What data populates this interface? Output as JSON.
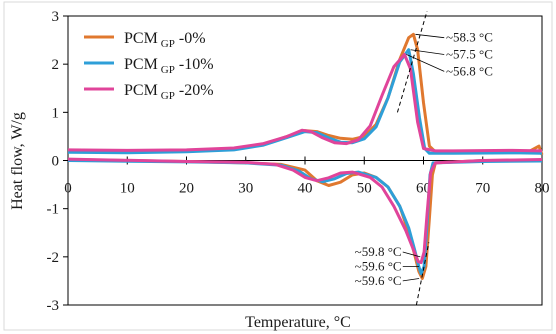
{
  "chart_data": {
    "type": "line",
    "title": "",
    "xlabel": "Temperature, °C",
    "ylabel": "Heat flow, W/g",
    "xlim": [
      0,
      80
    ],
    "ylim": [
      -3,
      3
    ],
    "x_ticks": [
      "0",
      "10",
      "20",
      "30",
      "40",
      "50",
      "60",
      "70",
      "80"
    ],
    "y_ticks": [
      "-3",
      "-2",
      "-1",
      "0",
      "1",
      "2",
      "3"
    ],
    "grid": false,
    "legend_position": "top-left",
    "series": [
      {
        "name": "PCM",
        "subscript": "GP",
        "suffix": " -0%",
        "color": "#E0782F",
        "heating": [
          [
            0,
            0.2
          ],
          [
            10,
            0.2
          ],
          [
            20,
            0.2
          ],
          [
            28,
            0.24
          ],
          [
            33,
            0.33
          ],
          [
            37,
            0.5
          ],
          [
            40,
            0.62
          ],
          [
            42,
            0.6
          ],
          [
            44,
            0.52
          ],
          [
            46,
            0.46
          ],
          [
            48,
            0.44
          ],
          [
            50,
            0.5
          ],
          [
            52,
            0.75
          ],
          [
            54,
            1.3
          ],
          [
            56,
            2.1
          ],
          [
            57.5,
            2.55
          ],
          [
            58.3,
            2.62
          ],
          [
            59,
            2.3
          ],
          [
            60,
            1.2
          ],
          [
            61,
            0.3
          ],
          [
            62,
            0.18
          ],
          [
            65,
            0.16
          ],
          [
            75,
            0.17
          ],
          [
            78,
            0.2
          ],
          [
            79.5,
            0.3
          ],
          [
            80,
            0.12
          ]
        ],
        "cooling": [
          [
            0,
            0.02
          ],
          [
            20,
            -0.02
          ],
          [
            30,
            -0.05
          ],
          [
            36,
            -0.08
          ],
          [
            40,
            -0.2
          ],
          [
            42,
            -0.42
          ],
          [
            44,
            -0.52
          ],
          [
            46,
            -0.45
          ],
          [
            48,
            -0.3
          ],
          [
            50,
            -0.26
          ],
          [
            52,
            -0.35
          ],
          [
            54,
            -0.55
          ],
          [
            56,
            -0.95
          ],
          [
            57.5,
            -1.5
          ],
          [
            58.5,
            -1.95
          ],
          [
            59.2,
            -2.3
          ],
          [
            59.8,
            -2.45
          ],
          [
            60.4,
            -2.2
          ],
          [
            61,
            -1.2
          ],
          [
            61.5,
            -0.3
          ],
          [
            62,
            -0.05
          ],
          [
            70,
            0.0
          ],
          [
            80,
            0.01
          ]
        ]
      },
      {
        "name": "PCM",
        "subscript": "GP",
        "suffix": " -10%",
        "color": "#2E9FD8",
        "heating": [
          [
            0,
            0.17
          ],
          [
            10,
            0.16
          ],
          [
            20,
            0.18
          ],
          [
            28,
            0.22
          ],
          [
            33,
            0.32
          ],
          [
            37,
            0.48
          ],
          [
            40,
            0.6
          ],
          [
            42,
            0.58
          ],
          [
            44,
            0.47
          ],
          [
            46,
            0.38
          ],
          [
            48,
            0.37
          ],
          [
            50,
            0.45
          ],
          [
            52,
            0.7
          ],
          [
            54,
            1.3
          ],
          [
            56,
            2.05
          ],
          [
            57.5,
            2.3
          ],
          [
            58.3,
            1.8
          ],
          [
            59.3,
            0.9
          ],
          [
            60.2,
            0.25
          ],
          [
            61,
            0.15
          ],
          [
            65,
            0.15
          ],
          [
            75,
            0.16
          ],
          [
            80,
            0.15
          ]
        ],
        "cooling": [
          [
            0,
            0.0
          ],
          [
            20,
            -0.03
          ],
          [
            30,
            -0.05
          ],
          [
            36,
            -0.1
          ],
          [
            39,
            -0.22
          ],
          [
            41,
            -0.38
          ],
          [
            43,
            -0.44
          ],
          [
            45,
            -0.38
          ],
          [
            47,
            -0.27
          ],
          [
            49,
            -0.24
          ],
          [
            52,
            -0.35
          ],
          [
            54,
            -0.55
          ],
          [
            56,
            -0.95
          ],
          [
            57.5,
            -1.4
          ],
          [
            58.5,
            -1.85
          ],
          [
            59.2,
            -2.2
          ],
          [
            59.6,
            -2.35
          ],
          [
            60.1,
            -2.2
          ],
          [
            60.6,
            -1.3
          ],
          [
            61.1,
            -0.3
          ],
          [
            61.6,
            -0.05
          ],
          [
            70,
            -0.02
          ],
          [
            80,
            -0.01
          ]
        ]
      },
      {
        "name": "PCM",
        "subscript": "GP",
        "suffix": " -20%",
        "color": "#E0449A",
        "heating": [
          [
            0,
            0.22
          ],
          [
            10,
            0.21
          ],
          [
            20,
            0.22
          ],
          [
            28,
            0.26
          ],
          [
            33,
            0.35
          ],
          [
            37,
            0.5
          ],
          [
            39.5,
            0.63
          ],
          [
            41,
            0.6
          ],
          [
            43,
            0.47
          ],
          [
            45,
            0.37
          ],
          [
            47,
            0.35
          ],
          [
            49,
            0.43
          ],
          [
            51,
            0.72
          ],
          [
            53,
            1.35
          ],
          [
            55,
            1.95
          ],
          [
            56.8,
            2.2
          ],
          [
            57.8,
            1.9
          ],
          [
            59,
            0.8
          ],
          [
            60,
            0.25
          ],
          [
            62,
            0.2
          ],
          [
            65,
            0.2
          ],
          [
            75,
            0.21
          ],
          [
            80,
            0.2
          ]
        ],
        "cooling": [
          [
            0,
            0.03
          ],
          [
            20,
            -0.02
          ],
          [
            30,
            -0.04
          ],
          [
            35,
            -0.08
          ],
          [
            38,
            -0.2
          ],
          [
            40,
            -0.35
          ],
          [
            42,
            -0.42
          ],
          [
            44,
            -0.36
          ],
          [
            46,
            -0.26
          ],
          [
            48,
            -0.24
          ],
          [
            51,
            -0.35
          ],
          [
            53,
            -0.55
          ],
          [
            55,
            -0.95
          ],
          [
            57,
            -1.45
          ],
          [
            58.3,
            -1.85
          ],
          [
            59.1,
            -2.1
          ],
          [
            59.6,
            -2.12
          ],
          [
            60.1,
            -1.9
          ],
          [
            60.6,
            -1.1
          ],
          [
            61.2,
            -0.25
          ],
          [
            62,
            -0.05
          ],
          [
            70,
            0.0
          ],
          [
            80,
            0.02
          ]
        ]
      }
    ],
    "annotations": {
      "heating": [
        {
          "text": "~58.3 °C",
          "x": 58.3,
          "y": 2.62
        },
        {
          "text": "~57.5 °C",
          "x": 57.5,
          "y": 2.3
        },
        {
          "text": "~56.8 °C",
          "x": 56.8,
          "y": 2.2
        }
      ],
      "cooling": [
        {
          "text": "~59.8 °C",
          "x": 59.8,
          "y": -2.0
        },
        {
          "text": "~59.6 °C",
          "x": 59.6,
          "y": -2.2
        },
        {
          "text": "~59.6 °C",
          "x": 59.6,
          "y": -2.45
        }
      ]
    }
  }
}
